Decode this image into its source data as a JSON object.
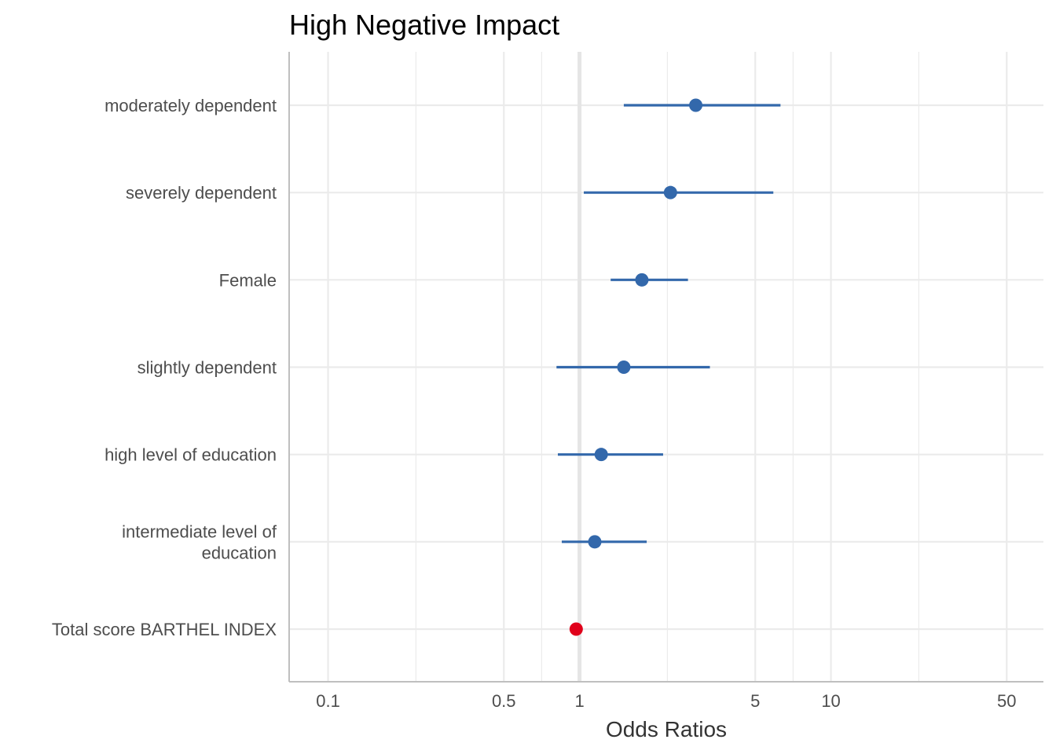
{
  "chart_data": {
    "type": "forest",
    "title": "High Negative Impact",
    "xlabel": "Odds Ratios",
    "ylabel": "",
    "x_scale": "log10",
    "xlim": [
      0.07,
      70
    ],
    "x_ticks": [
      {
        "value": 0.1,
        "label": "0.1"
      },
      {
        "value": 0.5,
        "label": "0.5"
      },
      {
        "value": 1,
        "label": "1"
      },
      {
        "value": 5,
        "label": "5"
      },
      {
        "value": 10,
        "label": "10"
      },
      {
        "value": 50,
        "label": "50"
      }
    ],
    "reference_line": 1,
    "grid": true,
    "colors": {
      "positive": "#3368ab",
      "negative": "#e0001a",
      "grid": "#ebebeb",
      "axis": "#bfbfbf",
      "reference": "#e5e5e5"
    },
    "rows": [
      {
        "label_lines": [
          "moderately dependent"
        ],
        "estimate": 2.9,
        "ci_low": 1.5,
        "ci_high": 6.3,
        "direction": "positive"
      },
      {
        "label_lines": [
          "severely dependent"
        ],
        "estimate": 2.3,
        "ci_low": 1.04,
        "ci_high": 5.9,
        "direction": "positive"
      },
      {
        "label_lines": [
          "Female"
        ],
        "estimate": 1.77,
        "ci_low": 1.33,
        "ci_high": 2.7,
        "direction": "positive"
      },
      {
        "label_lines": [
          "slightly dependent"
        ],
        "estimate": 1.5,
        "ci_low": 0.81,
        "ci_high": 3.3,
        "direction": "positive"
      },
      {
        "label_lines": [
          "high level of education"
        ],
        "estimate": 1.22,
        "ci_low": 0.82,
        "ci_high": 2.15,
        "direction": "positive"
      },
      {
        "label_lines": [
          "intermediate level of",
          "education"
        ],
        "estimate": 1.15,
        "ci_low": 0.85,
        "ci_high": 1.85,
        "direction": "positive"
      },
      {
        "label_lines": [
          "Total score BARTHEL INDEX"
        ],
        "estimate": 0.97,
        "ci_low": 0.96,
        "ci_high": 0.98,
        "direction": "negative"
      }
    ]
  }
}
